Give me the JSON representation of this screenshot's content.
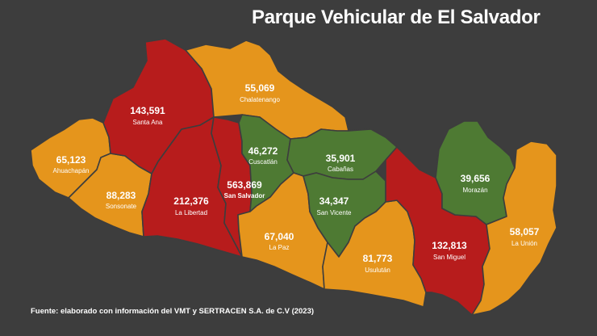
{
  "title": "Parque Vehicular de El Salvador",
  "source": "Fuente: elaborado con información del VMT y SERTRACEN S.A. de C.V (2023)",
  "colors": {
    "background": "#3d3d3d",
    "high": "#b71c1c",
    "medium": "#e5951c",
    "low": "#4e7a33"
  },
  "departments": [
    {
      "id": "ahuachapan",
      "name": "Ahuachapán",
      "value": "65,123",
      "category": "medium"
    },
    {
      "id": "sonsonate",
      "name": "Sonsonate",
      "value": "88,283",
      "category": "medium"
    },
    {
      "id": "santa-ana",
      "name": "Santa Ana",
      "value": "143,591",
      "category": "high"
    },
    {
      "id": "chalatenango",
      "name": "Chalatenango",
      "value": "55,069",
      "category": "medium"
    },
    {
      "id": "la-libertad",
      "name": "La Libertad",
      "value": "212,376",
      "category": "high"
    },
    {
      "id": "san-salvador",
      "name": "San Salvador",
      "value": "563,869",
      "category": "high"
    },
    {
      "id": "cuscatlan",
      "name": "Cuscatlán",
      "value": "46,272",
      "category": "low"
    },
    {
      "id": "cabanas",
      "name": "Cabañas",
      "value": "35,901",
      "category": "low"
    },
    {
      "id": "la-paz",
      "name": "La Paz",
      "value": "67,040",
      "category": "medium"
    },
    {
      "id": "san-vicente",
      "name": "San Vicente",
      "value": "34,347",
      "category": "low"
    },
    {
      "id": "usulutan",
      "name": "Usulután",
      "value": "81,773",
      "category": "medium"
    },
    {
      "id": "san-miguel",
      "name": "San Miguel",
      "value": "132,813",
      "category": "high"
    },
    {
      "id": "morazan",
      "name": "Morazán",
      "value": "39,656",
      "category": "low"
    },
    {
      "id": "la-union",
      "name": "La Unión",
      "value": "58,057",
      "category": "medium"
    }
  ]
}
